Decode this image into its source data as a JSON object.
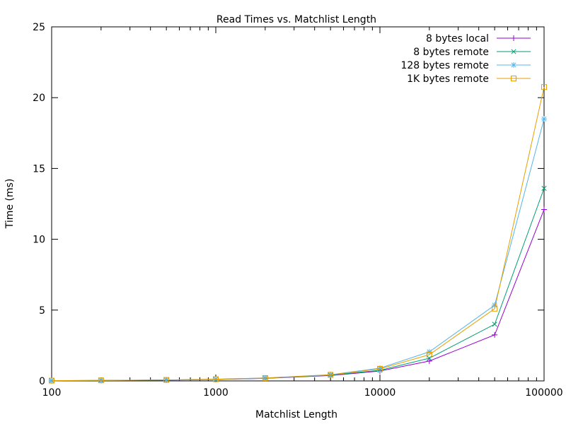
{
  "chart_data": {
    "type": "line",
    "title": "Read Times vs. Matchlist Length",
    "xlabel": "Matchlist Length",
    "ylabel": "Time (ms)",
    "xscale": "log",
    "xlim": [
      100,
      100000
    ],
    "ylim": [
      0,
      25
    ],
    "xticks": [
      "100",
      "1000",
      "10000",
      "100000"
    ],
    "xtick_values": [
      100,
      1000,
      10000,
      100000
    ],
    "yticks": [
      "0",
      "5",
      "10",
      "15",
      "20",
      "25"
    ],
    "ytick_values": [
      0,
      5,
      10,
      15,
      20,
      25
    ],
    "grid": false,
    "legend_position": "top-right",
    "x": [
      100,
      200,
      500,
      1000,
      2000,
      5000,
      10000,
      20000,
      50000,
      100000
    ],
    "series": [
      {
        "name": "8 bytes local",
        "color": "#9400d3",
        "marker": "plus",
        "values": [
          0.01,
          0.03,
          0.06,
          0.1,
          0.18,
          0.38,
          0.7,
          1.4,
          3.25,
          12.1
        ]
      },
      {
        "name": "8 bytes remote",
        "color": "#009e73",
        "marker": "cross",
        "values": [
          0.01,
          0.03,
          0.06,
          0.11,
          0.19,
          0.4,
          0.75,
          1.6,
          4.0,
          13.6
        ]
      },
      {
        "name": "128 bytes remote",
        "color": "#56b4e9",
        "marker": "star",
        "values": [
          0.02,
          0.04,
          0.07,
          0.12,
          0.21,
          0.44,
          0.9,
          2.05,
          5.35,
          18.5
        ]
      },
      {
        "name": "1K bytes remote",
        "color": "#e69f00",
        "marker": "square",
        "values": [
          0.02,
          0.04,
          0.07,
          0.12,
          0.2,
          0.43,
          0.85,
          1.85,
          5.1,
          20.75
        ]
      }
    ]
  }
}
